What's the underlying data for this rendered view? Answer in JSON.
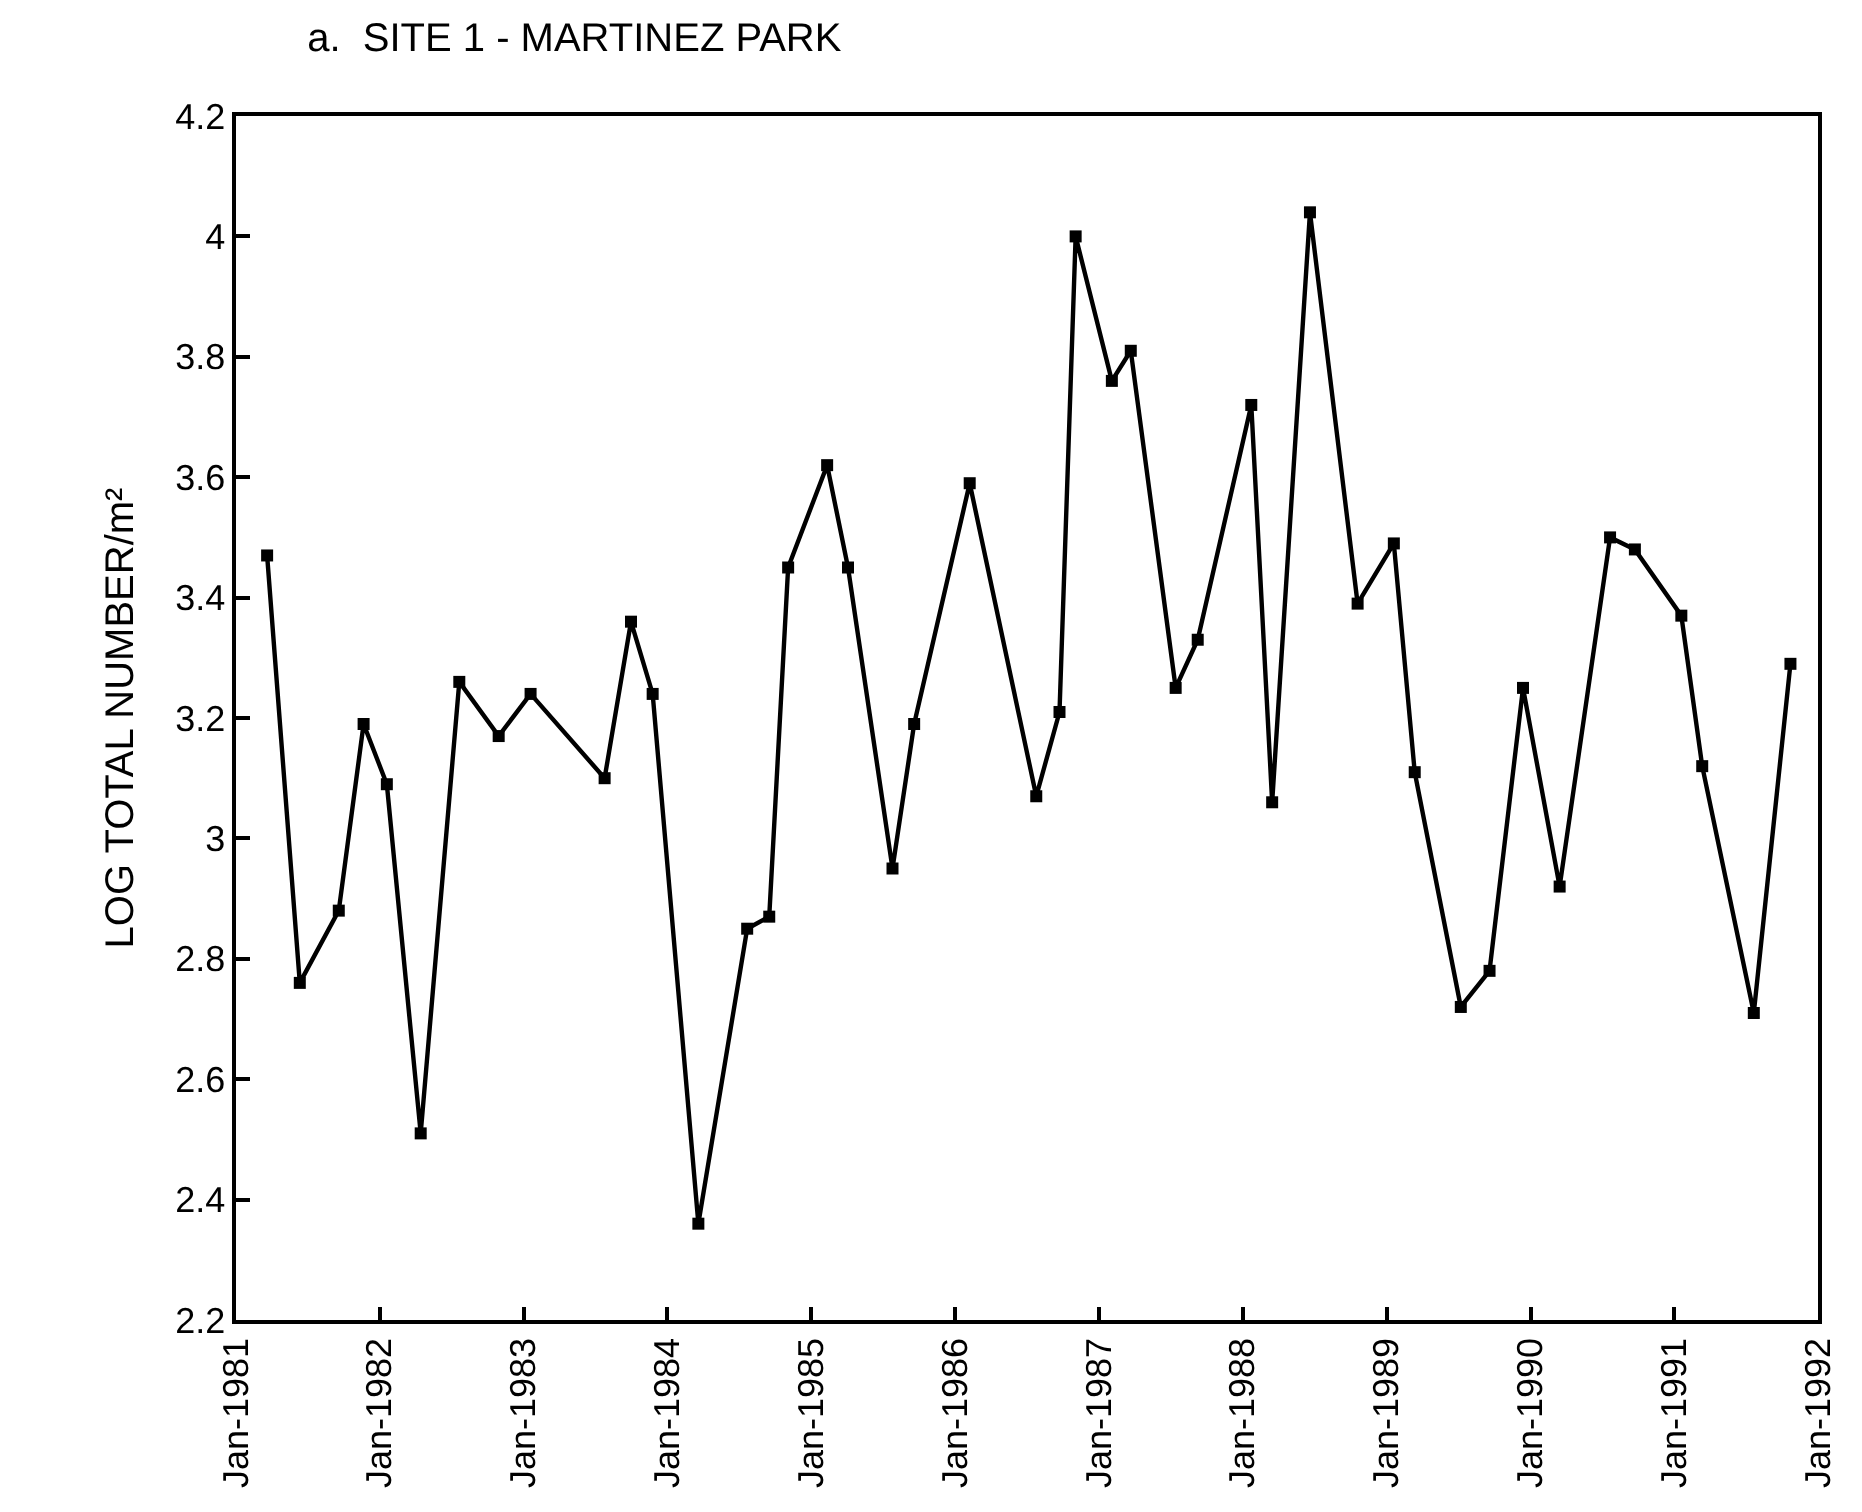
{
  "chart_data": {
    "type": "line",
    "title": "a.  SITE 1 - MARTINEZ PARK",
    "ylabel": "LOG TOTAL NUMBER/m²",
    "x": [
      "1981-03-21",
      "1981-06-12",
      "1981-09-19",
      "1981-11-21",
      "1982-01-19",
      "1982-04-15",
      "1982-07-22",
      "1982-10-30",
      "1983-01-19",
      "1983-07-26",
      "1983-10-01",
      "1983-11-25",
      "1984-03-20",
      "1984-07-22",
      "1984-09-16",
      "1984-11-03",
      "1985-02-10",
      "1985-04-04",
      "1985-07-26",
      "1985-09-19",
      "1986-02-07",
      "1986-07-26",
      "1986-09-23",
      "1986-11-03",
      "1987-02-03",
      "1987-03-23",
      "1987-07-15",
      "1987-09-09",
      "1988-01-23",
      "1988-03-16",
      "1988-06-20",
      "1988-10-19",
      "1989-01-19",
      "1989-03-13",
      "1989-07-08",
      "1989-09-19",
      "1989-12-13",
      "1990-03-16",
      "1990-07-22",
      "1990-09-23",
      "1991-01-19",
      "1991-03-13",
      "1991-07-22",
      "1991-10-23"
    ],
    "series": [
      {
        "color": "#000000",
        "values": [
          3.47,
          2.76,
          2.88,
          3.19,
          3.09,
          2.51,
          3.26,
          3.17,
          3.24,
          3.1,
          3.36,
          3.24,
          2.36,
          2.85,
          2.87,
          3.45,
          3.62,
          3.45,
          2.95,
          3.19,
          3.59,
          3.07,
          3.21,
          4.0,
          3.76,
          3.81,
          3.25,
          3.33,
          3.72,
          3.06,
          4.04,
          3.39,
          3.49,
          3.11,
          2.72,
          2.78,
          3.25,
          2.92,
          3.5,
          3.48,
          3.37,
          3.12,
          2.71,
          3.29
        ]
      }
    ],
    "xlim": [
      "1981-01-01",
      "1992-01-01"
    ],
    "xticks": [
      {
        "value": "1981-01-01",
        "label": "Jan-1981"
      },
      {
        "value": "1982-01-01",
        "label": "Jan-1982"
      },
      {
        "value": "1983-01-01",
        "label": "Jan-1983"
      },
      {
        "value": "1984-01-01",
        "label": "Jan-1984"
      },
      {
        "value": "1985-01-01",
        "label": "Jan-1985"
      },
      {
        "value": "1986-01-01",
        "label": "Jan-1986"
      },
      {
        "value": "1987-01-01",
        "label": "Jan-1987"
      },
      {
        "value": "1988-01-01",
        "label": "Jan-1988"
      },
      {
        "value": "1989-01-01",
        "label": "Jan-1989"
      },
      {
        "value": "1990-01-01",
        "label": "Jan-1990"
      },
      {
        "value": "1991-01-01",
        "label": "Jan-1991"
      },
      {
        "value": "1992-01-01",
        "label": "Jan-1992"
      }
    ],
    "ylim": [
      2.2,
      4.2
    ],
    "yticks": [
      2.2,
      2.4,
      2.6,
      2.8,
      3,
      3.2,
      3.4,
      3.6,
      3.8,
      4,
      4.2
    ],
    "marker": "square",
    "line_style": "solid",
    "legend": false
  }
}
